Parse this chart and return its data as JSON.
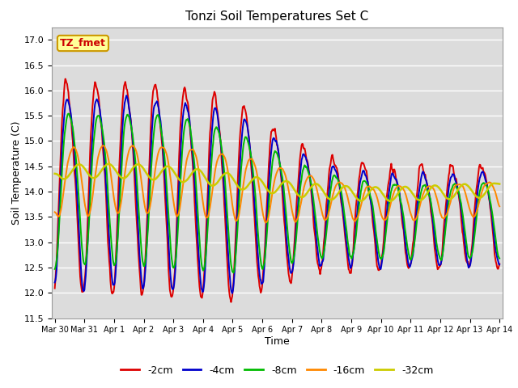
{
  "title": "Tonzi Soil Temperatures Set C",
  "xlabel": "Time",
  "ylabel": "Soil Temperature (C)",
  "ylim": [
    11.5,
    17.25
  ],
  "annotation": "TZ_fmet",
  "annotation_color": "#cc0000",
  "annotation_bg": "#ffff99",
  "annotation_border": "#cc9900",
  "plot_bg": "#dcdcdc",
  "series_colors": [
    "#dd0000",
    "#0000cc",
    "#00bb00",
    "#ff8800",
    "#cccc00"
  ],
  "series_lw": [
    1.4,
    1.4,
    1.4,
    1.4,
    1.8
  ],
  "x_tick_labels": [
    "Mar 30",
    "Mar 31",
    "Apr 1",
    "Apr 2",
    "Apr 3",
    "Apr 4",
    "Apr 5",
    "Apr 6",
    "Apr 7",
    "Apr 8",
    "Apr 9",
    "Apr 10",
    "Apr 11",
    "Apr 12",
    "Apr 13",
    "Apr 14"
  ],
  "yticks": [
    11.5,
    12.0,
    12.5,
    13.0,
    13.5,
    14.0,
    14.5,
    15.0,
    15.5,
    16.0,
    16.5,
    17.0
  ],
  "legend_labels": [
    "-2cm",
    "-4cm",
    "-8cm",
    "-16cm",
    "-32cm"
  ],
  "legend_colors": [
    "#dd0000",
    "#0000cc",
    "#00bb00",
    "#ff8800",
    "#cccc00"
  ]
}
